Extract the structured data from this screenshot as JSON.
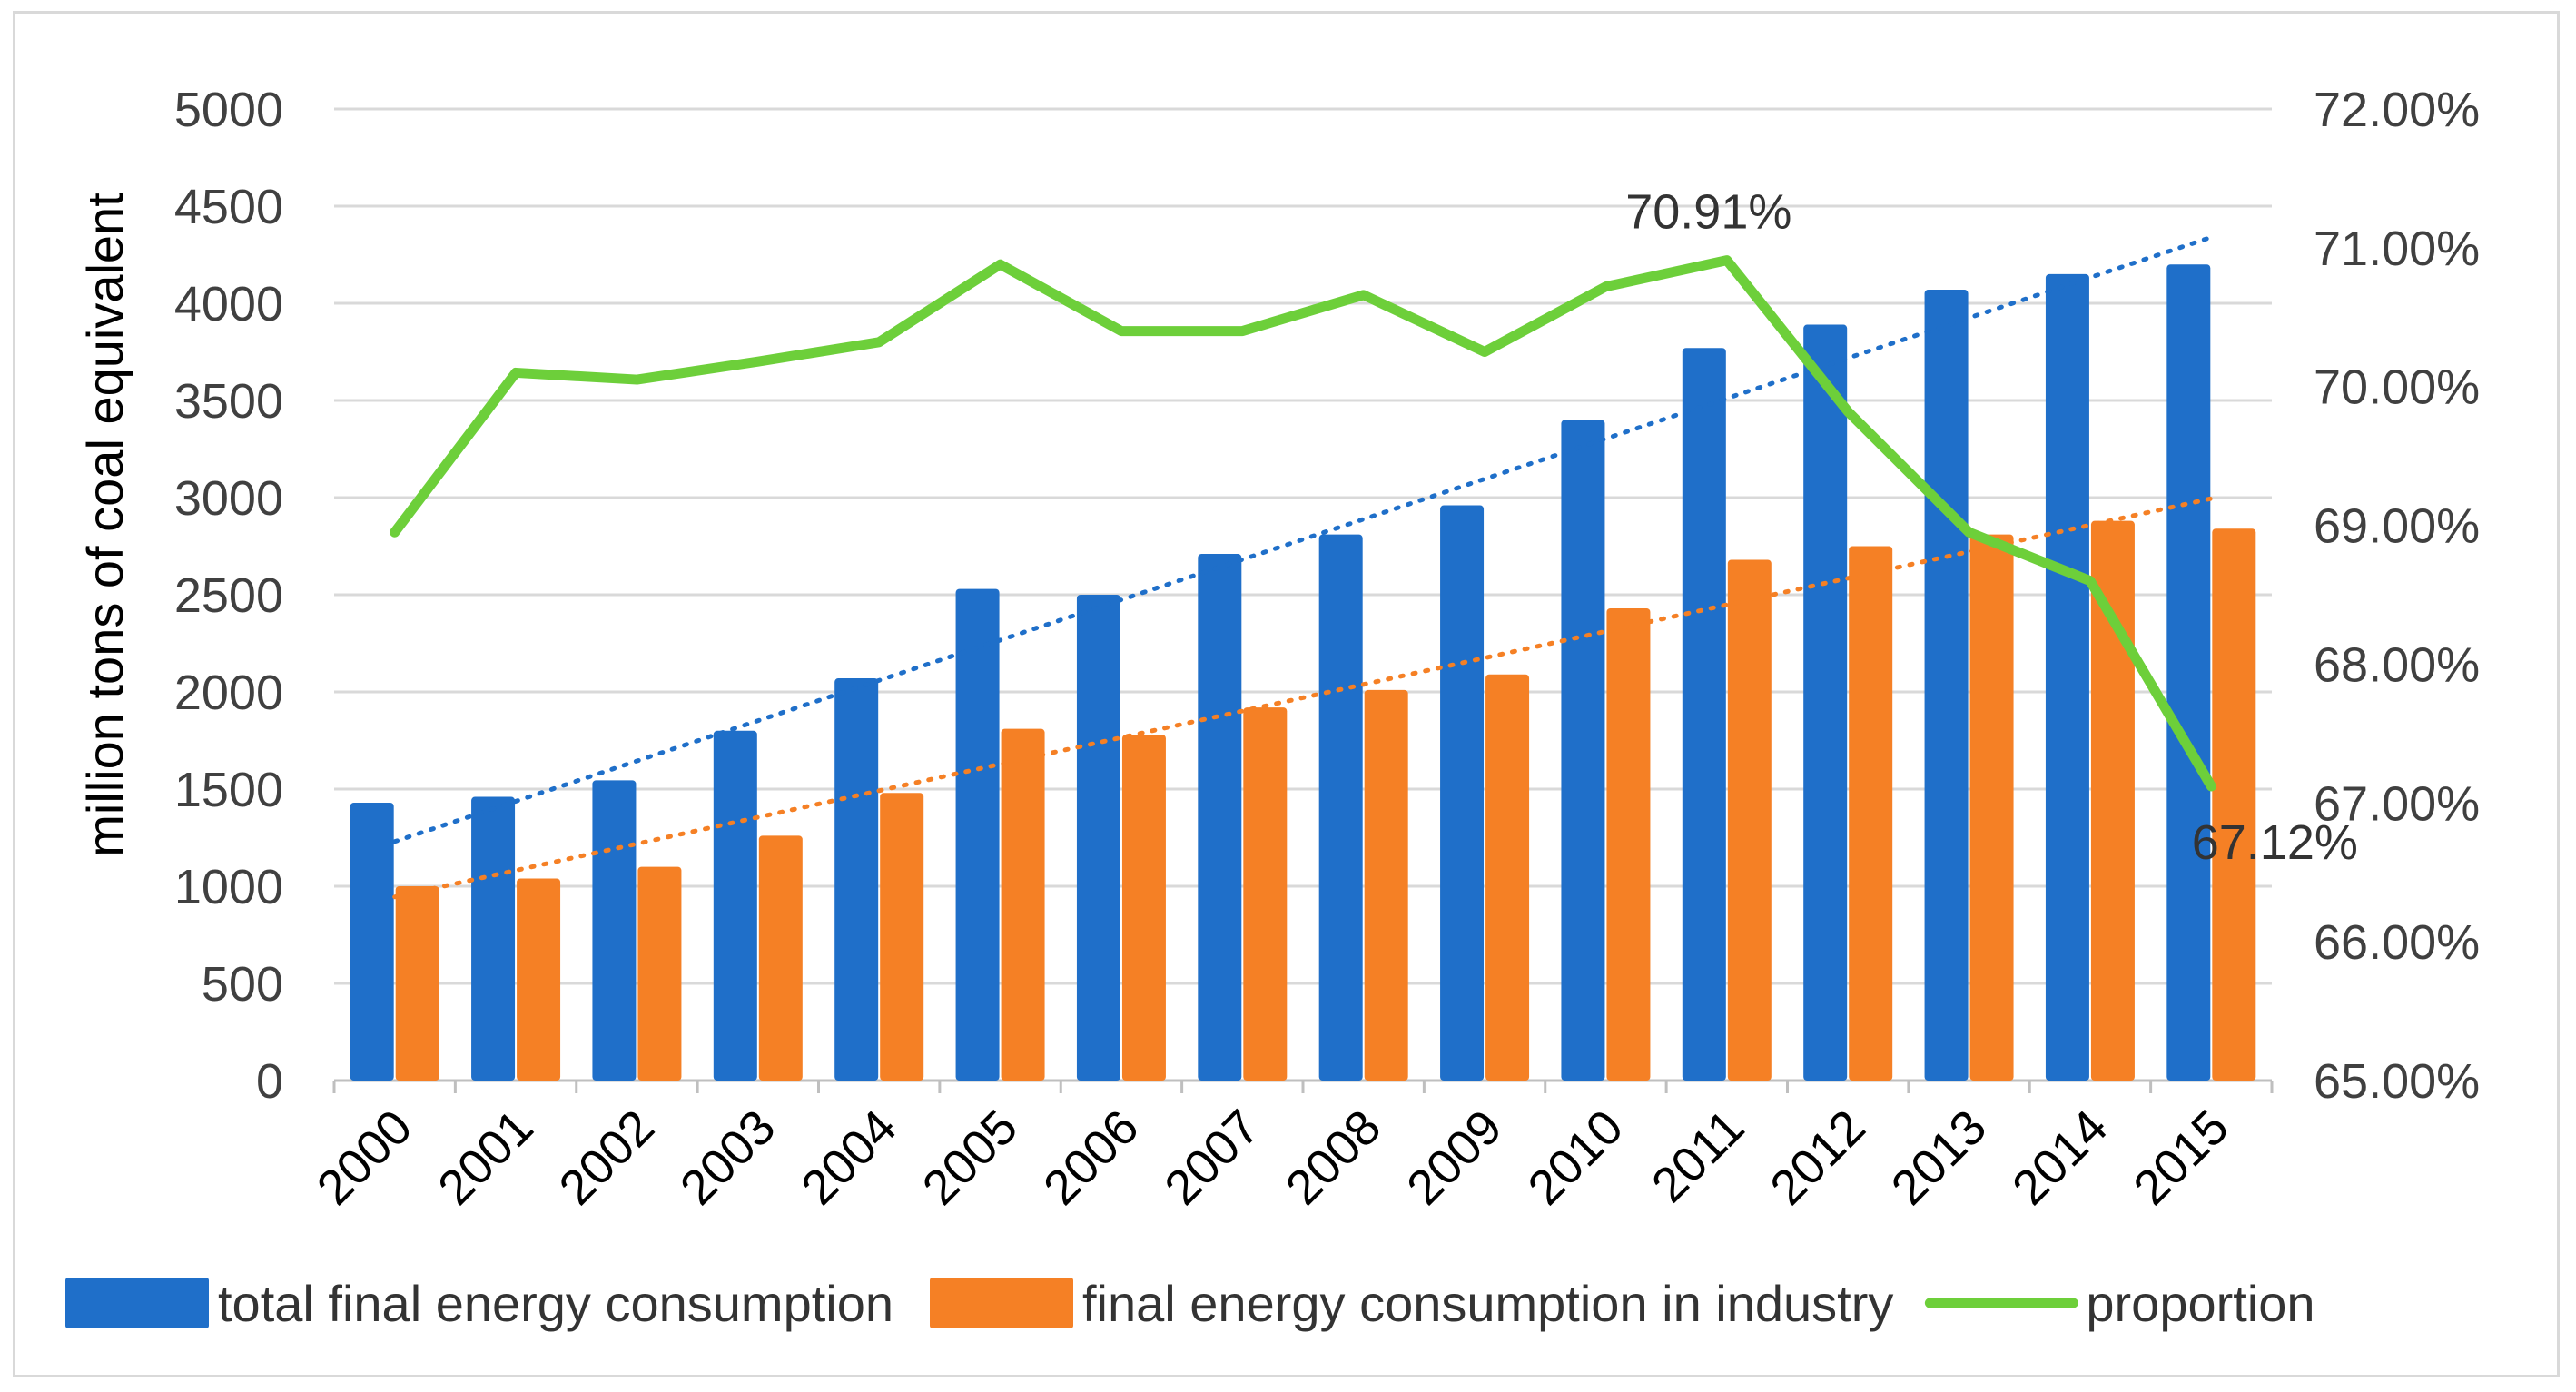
{
  "chart_data": {
    "type": "bar",
    "categories": [
      "2000",
      "2001",
      "2002",
      "2003",
      "2004",
      "2005",
      "2006",
      "2007",
      "2008",
      "2009",
      "2010",
      "2011",
      "2012",
      "2013",
      "2014",
      "2015"
    ],
    "ylabel": "million tons of coal equivalent",
    "ylim": [
      0,
      5000
    ],
    "y_ticks": [
      "0",
      "500",
      "1000",
      "1500",
      "2000",
      "2500",
      "3000",
      "3500",
      "4000",
      "4500",
      "5000"
    ],
    "y2lim": [
      65,
      72
    ],
    "y2_ticks": [
      "65.00%",
      "66.00%",
      "67.00%",
      "68.00%",
      "69.00%",
      "70.00%",
      "71.00%",
      "72.00%"
    ],
    "grid": true,
    "legend_position": "bottom",
    "series": [
      {
        "name": "total final energy consumption",
        "kind": "bar",
        "axis": "left",
        "color": "#1f6fc9",
        "values": [
          1430,
          1460,
          1545,
          1800,
          2070,
          2530,
          2500,
          2710,
          2810,
          2960,
          3400,
          3770,
          3890,
          4070,
          4150,
          4200
        ]
      },
      {
        "name": "final energy consumption in industry",
        "kind": "bar",
        "axis": "left",
        "color": "#f58025",
        "values": [
          1000,
          1040,
          1100,
          1260,
          1480,
          1810,
          1780,
          1920,
          2010,
          2090,
          2430,
          2680,
          2750,
          2810,
          2880,
          2840
        ]
      },
      {
        "name": "proportion",
        "kind": "line",
        "axis": "right",
        "color": "#6dcf3a",
        "values": [
          68.95,
          70.1,
          70.05,
          70.18,
          70.32,
          70.88,
          70.4,
          70.4,
          70.66,
          70.25,
          70.72,
          70.91,
          69.82,
          68.95,
          68.6,
          67.12
        ]
      }
    ],
    "trendlines": [
      {
        "series": "total final energy consumption",
        "color": "#1f6fc9",
        "start": 1230,
        "end": 4340
      },
      {
        "series": "final energy consumption in industry",
        "color": "#f58025",
        "start": 945,
        "end": 2995
      }
    ],
    "annotations": [
      {
        "text": "70.91%",
        "category": "2011"
      },
      {
        "text": "67.12%",
        "category": "2015"
      }
    ]
  }
}
